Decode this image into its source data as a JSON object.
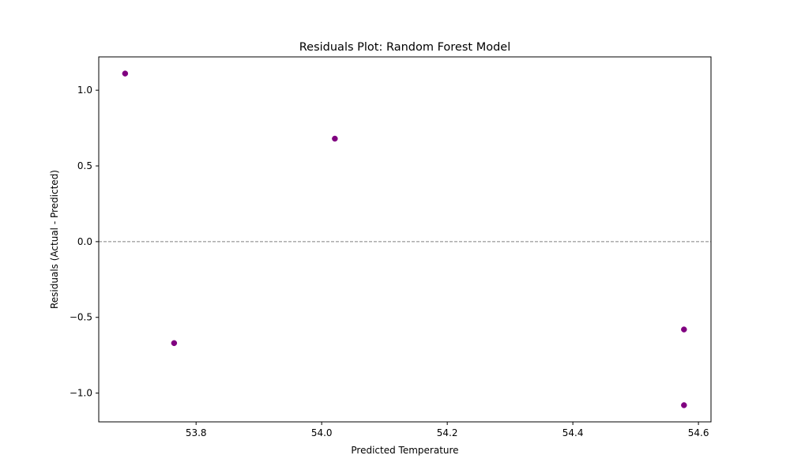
{
  "chart_data": {
    "type": "scatter",
    "title": "Residuals Plot: Random Forest Model",
    "xlabel": "Predicted Temperature",
    "ylabel": "Residuals (Actual - Predicted)",
    "xlim": [
      53.645,
      54.62
    ],
    "ylim": [
      -1.19,
      1.22
    ],
    "xticks": [
      53.8,
      54.0,
      54.2,
      54.4,
      54.6
    ],
    "xtick_labels": [
      "53.8",
      "54.0",
      "54.2",
      "54.4",
      "54.6"
    ],
    "yticks": [
      -1.0,
      -0.5,
      0.0,
      0.5,
      1.0
    ],
    "ytick_labels": [
      "−1.0",
      "−0.5",
      "0.0",
      "0.5",
      "1.0"
    ],
    "grid": false,
    "reference_line": {
      "y": 0.0,
      "style": "dashed",
      "color": "#808080"
    },
    "marker_color": "#800080",
    "points": [
      {
        "x": 53.687,
        "y": 1.11
      },
      {
        "x": 53.765,
        "y": -0.67
      },
      {
        "x": 54.021,
        "y": 0.68
      },
      {
        "x": 54.577,
        "y": -0.58
      },
      {
        "x": 54.577,
        "y": -1.08
      }
    ]
  }
}
